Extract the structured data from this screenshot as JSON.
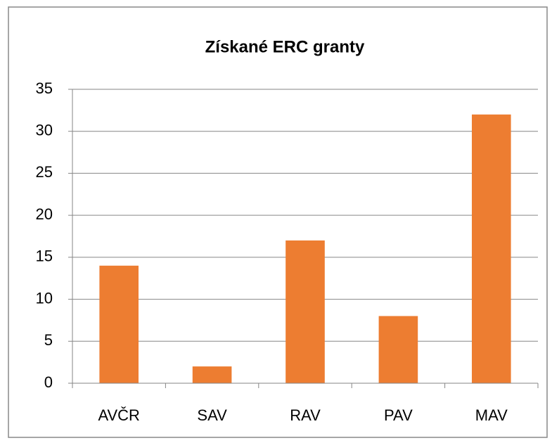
{
  "chart_data": {
    "type": "bar",
    "title": "Získané ERC granty",
    "categories": [
      "AVČR",
      "SAV",
      "RAV",
      "PAV",
      "MAV"
    ],
    "values": [
      14,
      2,
      17,
      8,
      32
    ],
    "color": "#ed7d31",
    "ylim": [
      0,
      35
    ],
    "yticks": [
      0,
      5,
      10,
      15,
      20,
      25,
      30,
      35
    ],
    "grid": true
  }
}
